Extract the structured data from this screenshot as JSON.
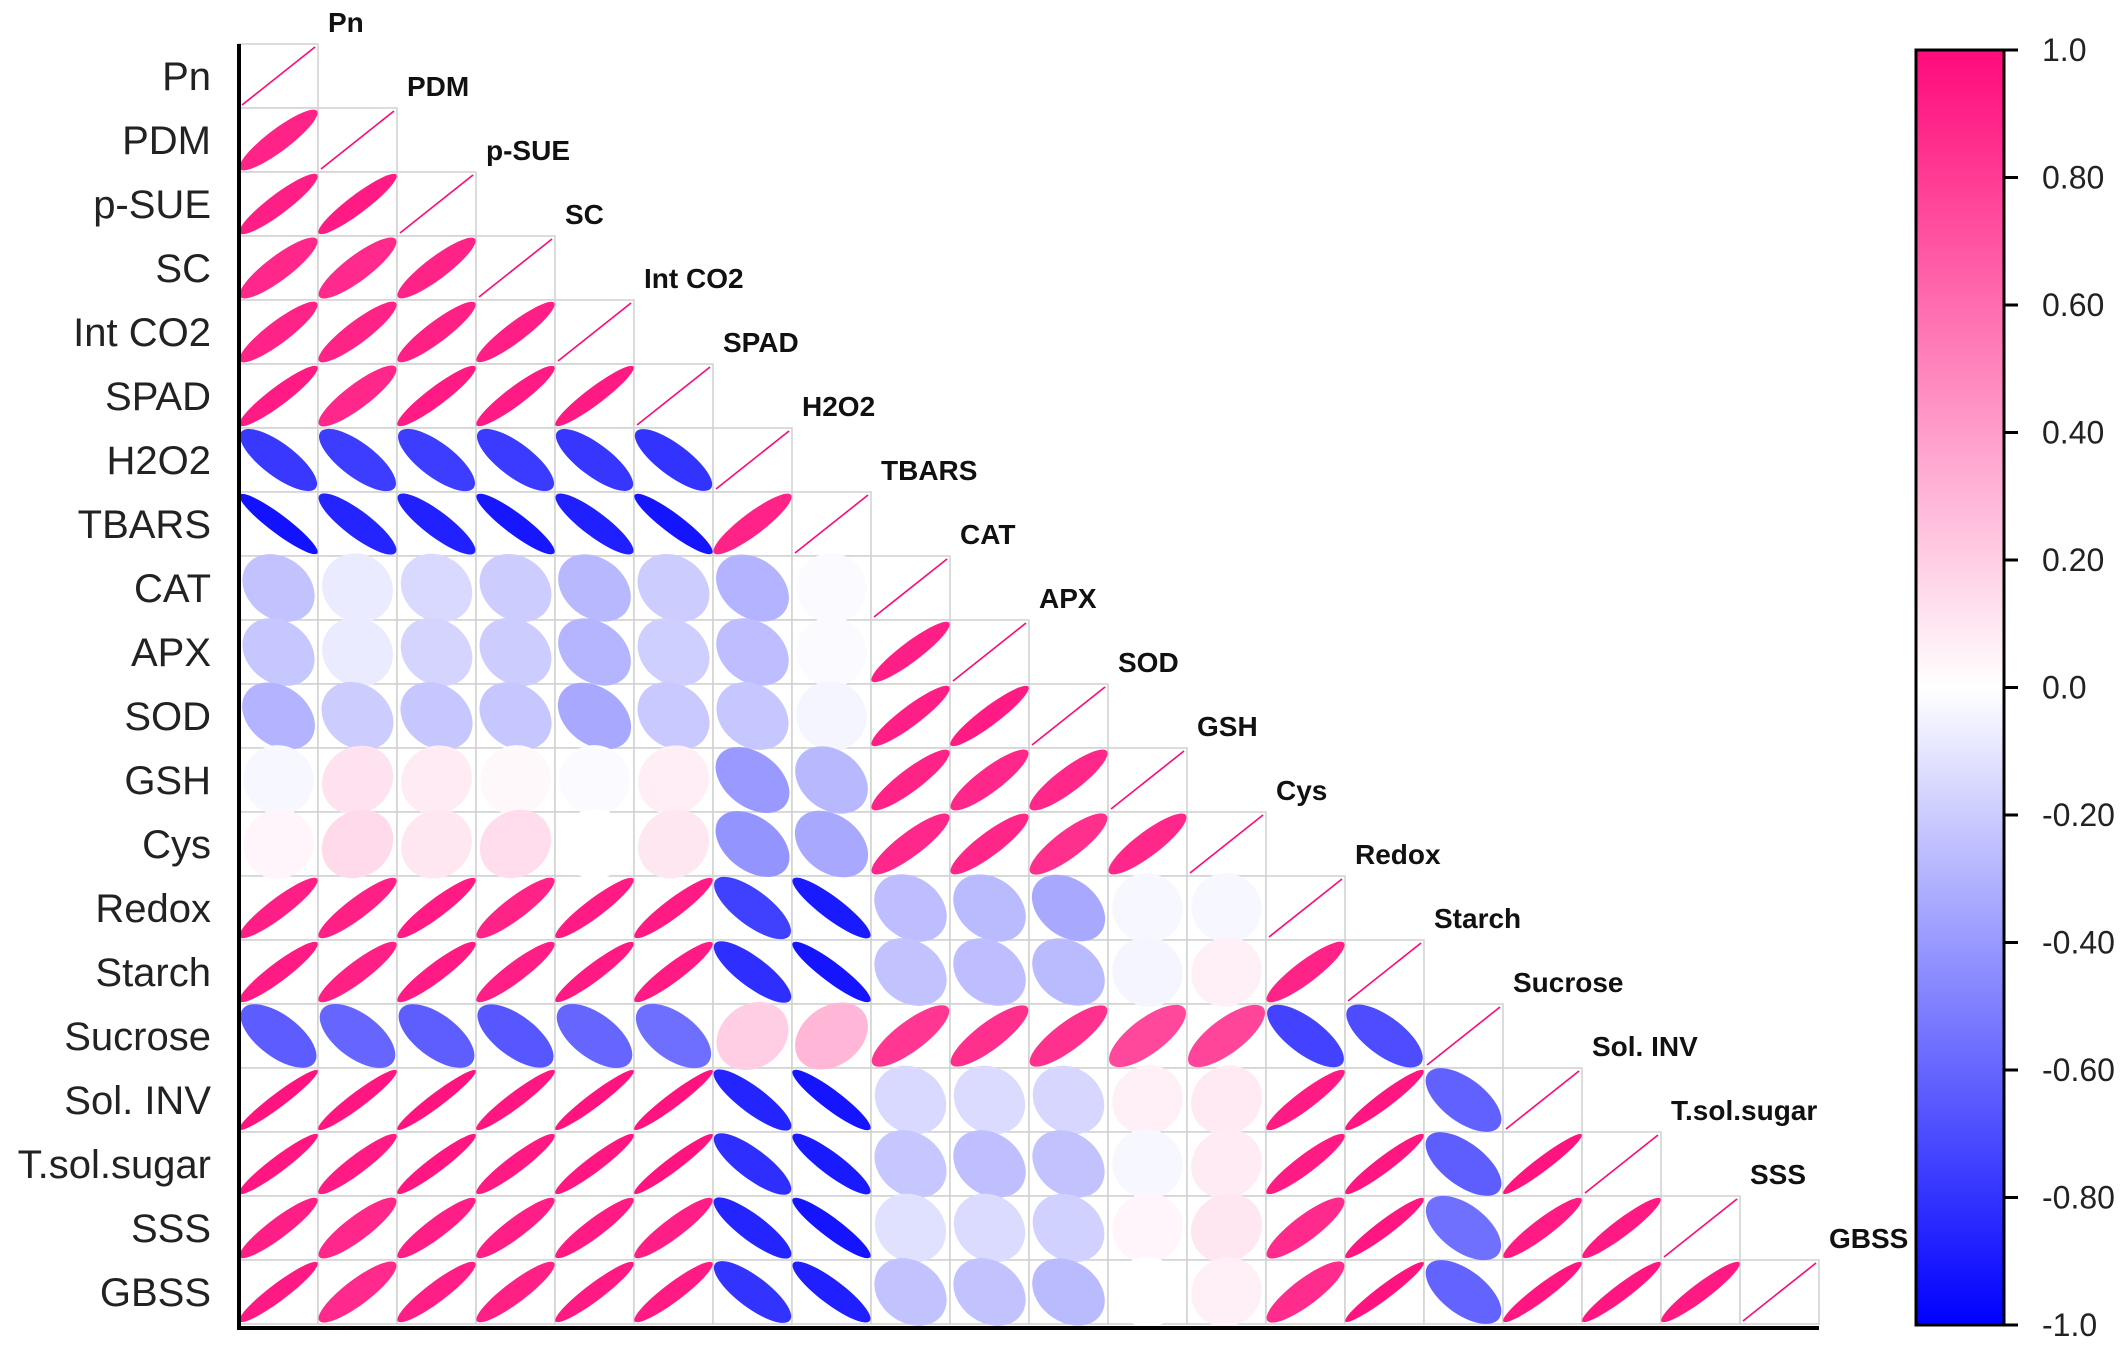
{
  "chart_data": {
    "type": "heatmap",
    "subtype": "correlation-ellipse-lower-triangle",
    "variables": [
      "Pn",
      "PDM",
      "p-SUE",
      "SC",
      "Int CO2",
      "SPAD",
      "H2O2",
      "TBARS",
      "CAT",
      "APX",
      "SOD",
      "GSH",
      "Cys",
      "Redox",
      "Starch",
      "Sucrose",
      "Sol. INV",
      "T.sol.sugar",
      "SSS",
      "GBSS"
    ],
    "matrix": [
      [
        1
      ],
      [
        0.9,
        1
      ],
      [
        0.92,
        0.93,
        1
      ],
      [
        0.88,
        0.87,
        0.9,
        1
      ],
      [
        0.9,
        0.9,
        0.91,
        0.92,
        1
      ],
      [
        0.93,
        0.88,
        0.93,
        0.93,
        0.94,
        1
      ],
      [
        -0.78,
        -0.76,
        -0.76,
        -0.77,
        -0.79,
        -0.8,
        1
      ],
      [
        -0.93,
        -0.86,
        -0.87,
        -0.91,
        -0.88,
        -0.92,
        0.9,
        1
      ],
      [
        -0.24,
        -0.08,
        -0.15,
        -0.2,
        -0.28,
        -0.2,
        -0.3,
        -0.02,
        1
      ],
      [
        -0.22,
        -0.08,
        -0.17,
        -0.2,
        -0.29,
        -0.19,
        -0.26,
        -0.02,
        0.92,
        1
      ],
      [
        -0.3,
        -0.2,
        -0.22,
        -0.22,
        -0.34,
        -0.21,
        -0.22,
        -0.04,
        0.92,
        0.93,
        1
      ],
      [
        -0.03,
        0.12,
        0.08,
        0.03,
        -0.02,
        0.07,
        -0.4,
        -0.28,
        0.9,
        0.88,
        0.88,
        1
      ],
      [
        0.04,
        0.15,
        0.1,
        0.14,
        0.0,
        0.1,
        -0.42,
        -0.34,
        0.88,
        0.89,
        0.85,
        0.88,
        1
      ],
      [
        0.92,
        0.91,
        0.93,
        0.9,
        0.93,
        0.93,
        -0.75,
        -0.9,
        -0.26,
        -0.27,
        -0.34,
        -0.03,
        -0.03,
        1
      ],
      [
        0.93,
        0.91,
        0.93,
        0.92,
        0.94,
        0.93,
        -0.82,
        -0.92,
        -0.24,
        -0.26,
        -0.27,
        -0.04,
        0.06,
        0.9,
        1
      ],
      [
        -0.64,
        -0.6,
        -0.63,
        -0.66,
        -0.6,
        -0.57,
        0.2,
        0.3,
        0.82,
        0.85,
        0.84,
        0.75,
        0.76,
        -0.74,
        -0.7,
        1
      ],
      [
        0.96,
        0.95,
        0.96,
        0.95,
        0.96,
        0.96,
        -0.86,
        -0.92,
        -0.15,
        -0.14,
        -0.16,
        0.06,
        0.09,
        0.93,
        0.95,
        -0.62,
        1
      ],
      [
        0.95,
        0.93,
        0.95,
        0.94,
        0.95,
        0.96,
        -0.82,
        -0.9,
        -0.22,
        -0.25,
        -0.24,
        -0.03,
        0.08,
        0.93,
        0.95,
        -0.63,
        0.96,
        1
      ],
      [
        0.92,
        0.88,
        0.92,
        0.92,
        0.93,
        0.92,
        -0.86,
        -0.92,
        -0.12,
        -0.14,
        -0.18,
        0.04,
        0.1,
        0.87,
        0.95,
        -0.56,
        0.93,
        0.94,
        1
      ],
      [
        0.94,
        0.87,
        0.92,
        0.91,
        0.94,
        0.93,
        -0.8,
        -0.88,
        -0.24,
        -0.24,
        -0.27,
        0.0,
        0.06,
        0.86,
        0.96,
        -0.61,
        0.95,
        0.95,
        0.94,
        1
      ]
    ],
    "colorbar": {
      "range": [
        -1.0,
        1.0
      ],
      "ticks": [
        "1.0",
        "0.80",
        "0.60",
        "0.40",
        "0.20",
        "0.0",
        "-0.20",
        "-0.40",
        "-0.60",
        "-0.80",
        "-1.0"
      ],
      "tick_values": [
        1.0,
        0.8,
        0.6,
        0.4,
        0.2,
        0.0,
        -0.2,
        -0.4,
        -0.6,
        -0.8,
        -1.0
      ],
      "color_negative": "#0000ff",
      "color_zero": "#ffffff",
      "color_positive": "#ff0a7a"
    },
    "grid": true,
    "legend_placement": "right"
  }
}
